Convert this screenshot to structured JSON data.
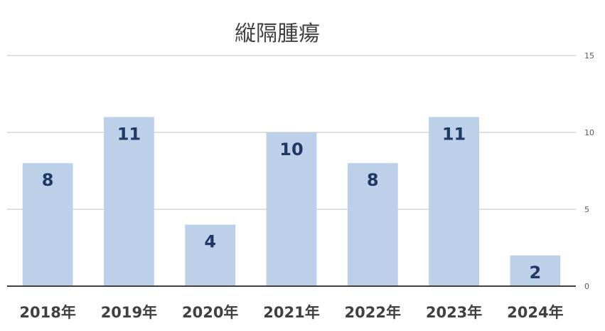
{
  "chart_data": {
    "type": "bar",
    "title": "縦隔腫瘍",
    "categories": [
      "2018年",
      "2019年",
      "2020年",
      "2021年",
      "2022年",
      "2023年",
      "2024年"
    ],
    "values": [
      8,
      11,
      4,
      10,
      8,
      11,
      2
    ],
    "ylim": [
      0,
      15
    ],
    "yticks": [
      0,
      5,
      10,
      15
    ],
    "y_axis_side": "right",
    "grid": true,
    "legend": "none",
    "data_labels": "inside-top",
    "colors": {
      "bar": "#bdd0ea",
      "label": "#1f3864",
      "category": "#404040",
      "grid": "#bfbfbf",
      "baseline": "#404040",
      "ytick": "#595959"
    }
  }
}
